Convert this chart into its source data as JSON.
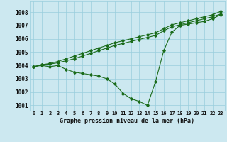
{
  "title": "Graphe pression niveau de la mer (hPa)",
  "bg_color": "#cce8f0",
  "grid_color": "#99cedd",
  "line_color": "#1a6b1a",
  "x_labels": [
    "0",
    "1",
    "2",
    "3",
    "4",
    "5",
    "6",
    "7",
    "8",
    "9",
    "10",
    "11",
    "12",
    "13",
    "14",
    "15",
    "16",
    "17",
    "18",
    "19",
    "20",
    "21",
    "22",
    "23"
  ],
  "ylim": [
    1000.6,
    1008.8
  ],
  "yticks": [
    1001,
    1002,
    1003,
    1004,
    1005,
    1006,
    1007,
    1008
  ],
  "series": [
    [
      1003.9,
      1004.0,
      1003.9,
      1004.0,
      1003.7,
      1003.5,
      1003.4,
      1003.3,
      1003.2,
      1003.0,
      1002.6,
      1001.9,
      1001.5,
      1001.3,
      1001.0,
      1002.8,
      1005.1,
      1006.5,
      1007.0,
      1007.1,
      1007.2,
      1007.3,
      1007.5,
      1007.8
    ],
    [
      1003.9,
      1004.05,
      1004.1,
      1004.2,
      1004.35,
      1004.5,
      1004.7,
      1004.9,
      1005.1,
      1005.3,
      1005.5,
      1005.65,
      1005.8,
      1005.95,
      1006.1,
      1006.25,
      1006.6,
      1006.9,
      1007.05,
      1007.2,
      1007.35,
      1007.5,
      1007.65,
      1007.85
    ],
    [
      1003.9,
      1004.05,
      1004.15,
      1004.3,
      1004.5,
      1004.7,
      1004.9,
      1005.1,
      1005.3,
      1005.5,
      1005.7,
      1005.85,
      1006.0,
      1006.15,
      1006.3,
      1006.45,
      1006.75,
      1007.05,
      1007.2,
      1007.35,
      1007.5,
      1007.65,
      1007.8,
      1008.05
    ]
  ]
}
